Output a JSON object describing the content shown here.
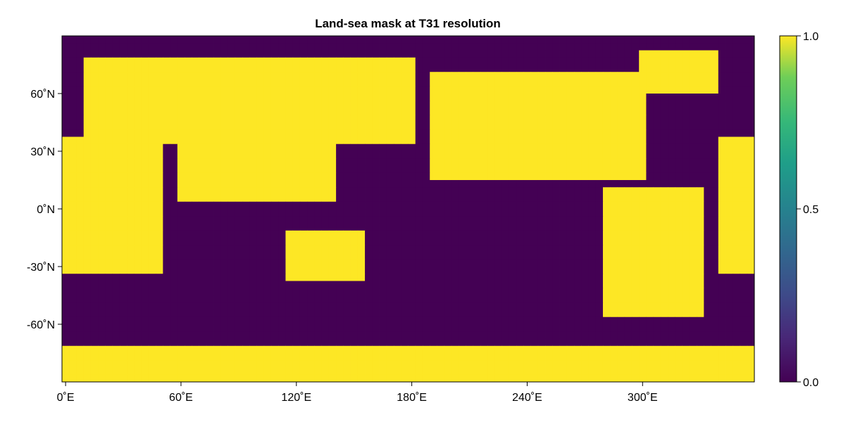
{
  "chart_data": {
    "type": "heatmap",
    "title": "Land-sea mask at T31 resolution",
    "xlabel": "",
    "ylabel": "",
    "grid": false,
    "x_ticks": [
      {
        "value": 0,
        "label": "0˚E"
      },
      {
        "value": 60,
        "label": "60˚E"
      },
      {
        "value": 120,
        "label": "120˚E"
      },
      {
        "value": 180,
        "label": "180˚E"
      },
      {
        "value": 240,
        "label": "240˚E"
      },
      {
        "value": 300,
        "label": "300˚E"
      }
    ],
    "y_ticks": [
      {
        "value": 60,
        "label": "60˚N"
      },
      {
        "value": 30,
        "label": "30˚N"
      },
      {
        "value": 0,
        "label": "0˚N"
      },
      {
        "value": -30,
        "label": "-30˚N"
      },
      {
        "value": -60,
        "label": "-60˚N"
      }
    ],
    "xlim": [
      -1.875,
      358.125
    ],
    "ylim": [
      -90,
      90
    ],
    "grid_resolution": "T31",
    "n_lon": 96,
    "n_lat": 48,
    "colormap": "viridis",
    "colorbar": {
      "range": [
        0,
        1
      ],
      "ticks": [
        {
          "value": 1.0,
          "label": "1.0"
        },
        {
          "value": 0.5,
          "label": "0.5"
        },
        {
          "value": 0.0,
          "label": "0.0"
        }
      ]
    },
    "land_regions": [
      {
        "lon": [
          -20,
          50
        ],
        "lat": [
          -35,
          37
        ]
      },
      {
        "lon": [
          10,
          180
        ],
        "lat": [
          35,
          78
        ]
      },
      {
        "lon": [
          60,
          140
        ],
        "lat": [
          5,
          45
        ]
      },
      {
        "lon": [
          113,
          154
        ],
        "lat": [
          -39,
          -11
        ]
      },
      {
        "lon": [
          190,
          300
        ],
        "lat": [
          15,
          72
        ]
      },
      {
        "lon": [
          280,
          330
        ],
        "lat": [
          -55,
          12
        ]
      },
      {
        "lon": [
          298,
          340
        ],
        "lat": [
          60,
          83
        ]
      },
      {
        "lon": [
          0,
          360
        ],
        "lat": [
          -90,
          -70
        ]
      }
    ]
  }
}
